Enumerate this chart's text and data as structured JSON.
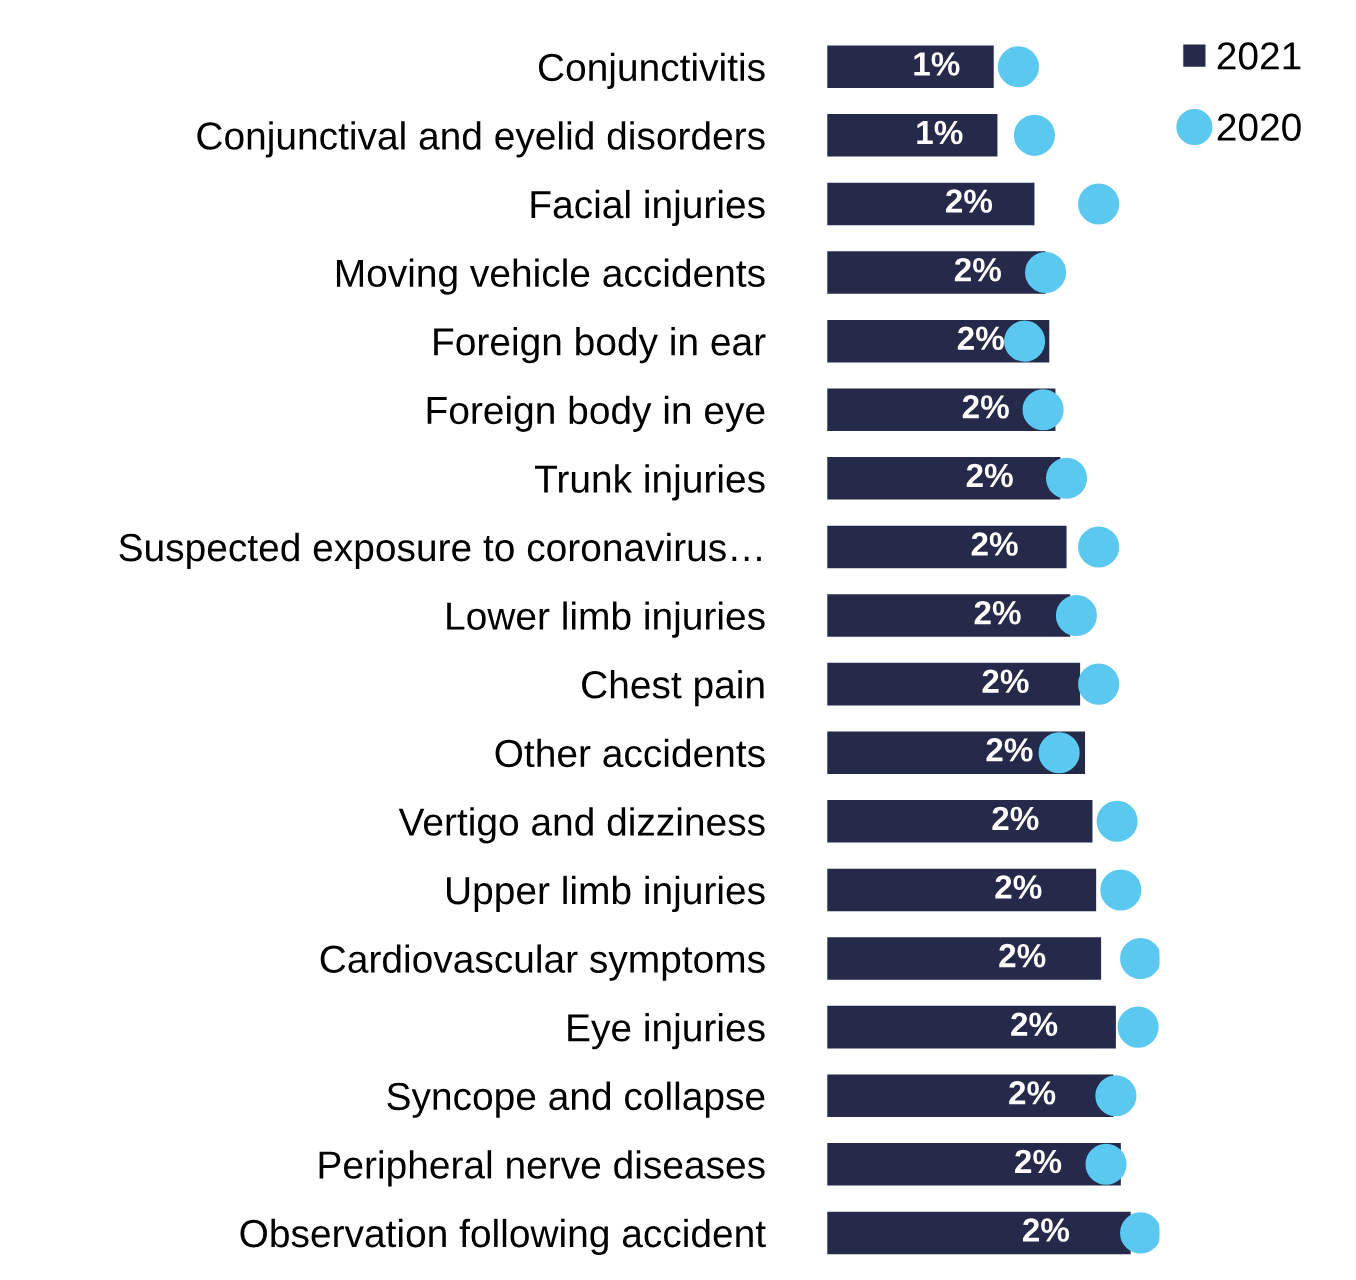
{
  "chart_data": {
    "type": "bar",
    "orientation": "horizontal",
    "legend": "top right",
    "grid": false,
    "categories": [
      "Conjunctivitis",
      "Conjunctival and eyelid disorders",
      "Facial injuries",
      "Moving vehicle accidents",
      "Foreign body in ear",
      "Foreign body in eye",
      "Trunk injuries",
      "Suspected exposure to coronavirus…",
      "Lower limb injuries",
      "Chest pain",
      "Other accidents",
      "Vertigo and dizziness",
      "Upper limb injuries",
      "Cardiovascular symptoms",
      "Eye injuries",
      "Syncope and collapse",
      "Peripheral nerve diseases",
      "Observation following accident"
    ],
    "series": [
      {
        "name": "2021",
        "color": "#262a4a",
        "values": [
          1.35,
          1.38,
          1.68,
          1.77,
          1.8,
          1.85,
          1.89,
          1.94,
          1.97,
          2.05,
          2.09,
          2.15,
          2.18,
          2.22,
          2.34,
          2.32,
          2.38,
          2.46
        ],
        "value_labels": [
          "1%",
          "1%",
          "2%",
          "2%",
          "2%",
          "2%",
          "2%",
          "2%",
          "2%",
          "2%",
          "2%",
          "2%",
          "2%",
          "2%",
          "2%",
          "2%",
          "2%",
          "2%"
        ]
      },
      {
        "name": "2020",
        "type": "scatter",
        "color": "#5bc8f0",
        "marker": "circle",
        "values": [
          1.55,
          1.68,
          2.2,
          1.77,
          1.6,
          1.75,
          1.94,
          2.2,
          2.02,
          2.2,
          1.88,
          2.35,
          2.38,
          2.54,
          2.52,
          2.34,
          2.26,
          2.54
        ]
      }
    ]
  }
}
